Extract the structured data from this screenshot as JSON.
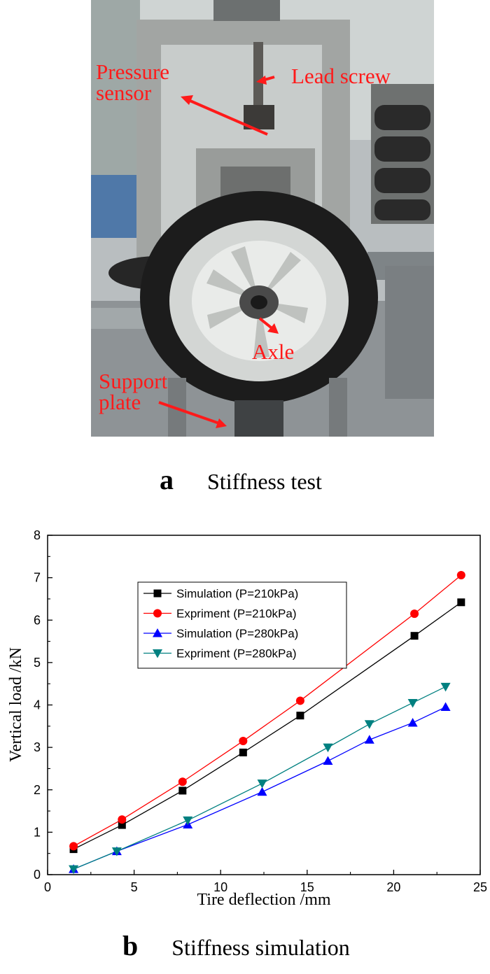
{
  "panel_a": {
    "letter": "a",
    "caption": "Stiffness test",
    "labels": {
      "pressure_sensor_line1": "Pressure",
      "pressure_sensor_line2": "sensor",
      "lead_screw": "Lead screw",
      "axle": "Axle",
      "support_plate_line1": "Support",
      "support_plate_line2": "plate"
    },
    "colors": {
      "annotation": "#ff1a1a"
    }
  },
  "panel_b": {
    "letter": "b",
    "caption": "Stiffness simulation"
  },
  "chart_data": {
    "type": "line",
    "xlabel": "Tire deflection /mm",
    "ylabel": "Vertical load /kN",
    "xlim": [
      0,
      25
    ],
    "ylim": [
      0,
      8
    ],
    "xticks": [
      0,
      5,
      10,
      15,
      20,
      25
    ],
    "yticks": [
      0,
      1,
      2,
      3,
      4,
      5,
      6,
      7,
      8
    ],
    "grid": false,
    "legend_position": "top-center",
    "series": [
      {
        "name": "Simulation (P=210kPa)",
        "color": "#000000",
        "marker": "square",
        "x": [
          1.5,
          4.3,
          7.8,
          11.3,
          14.6,
          21.2,
          23.9
        ],
        "y": [
          0.6,
          1.17,
          1.98,
          2.88,
          3.75,
          5.63,
          6.42
        ]
      },
      {
        "name": "Expriment  (P=210kPa)",
        "color": "#ff0000",
        "marker": "circle",
        "x": [
          1.5,
          4.3,
          7.8,
          11.3,
          14.6,
          21.2,
          23.9
        ],
        "y": [
          0.67,
          1.3,
          2.19,
          3.15,
          4.1,
          6.15,
          7.06
        ]
      },
      {
        "name": "Simulation (P=280kPa)",
        "color": "#0000ff",
        "marker": "triangle-up",
        "x": [
          1.5,
          4.0,
          8.1,
          12.4,
          16.2,
          18.6,
          21.1,
          23.0
        ],
        "y": [
          0.13,
          0.55,
          1.18,
          1.95,
          2.68,
          3.18,
          3.58,
          3.95
        ]
      },
      {
        "name": "Expriment  (P=280kPa)",
        "color": "#008080",
        "marker": "triangle-down",
        "x": [
          1.5,
          4.0,
          8.1,
          12.4,
          16.2,
          18.6,
          21.1,
          23.0
        ],
        "y": [
          0.13,
          0.55,
          1.28,
          2.15,
          3.0,
          3.55,
          4.05,
          4.43
        ]
      }
    ]
  }
}
